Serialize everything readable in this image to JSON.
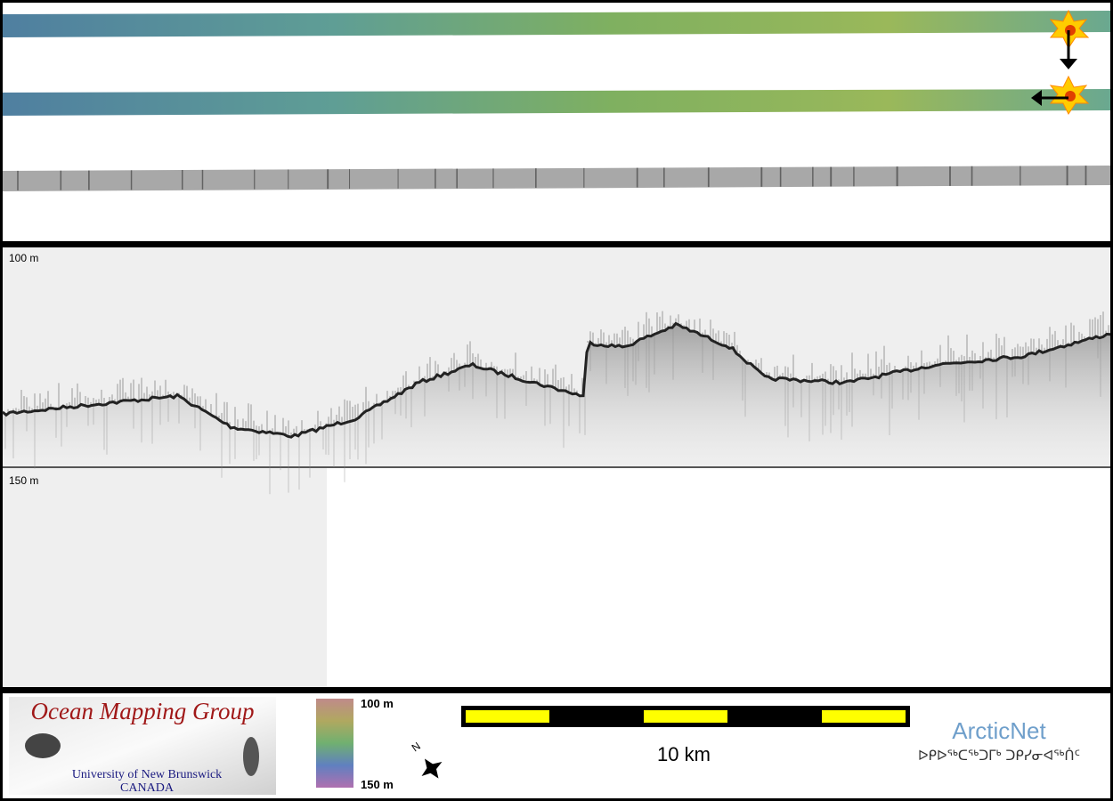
{
  "echogram": {
    "depth_top": "100 m",
    "depth_bottom": "150 m"
  },
  "footer": {
    "logo": {
      "title": "Ocean Mapping Group",
      "university": "University of New Brunswick",
      "country": "CANADA"
    },
    "colorbar": {
      "top_label": "100 m",
      "bottom_label": "150 m"
    },
    "compass": "N",
    "scale_bar": "10 km",
    "arcticnet": {
      "name": "ArcticNet",
      "syllabics": "ᐅᑭᐅᖅᑕᖅᑐᒥᒃ ᑐᑭᓯᓂᐊᖅᑏᑦ"
    }
  }
}
